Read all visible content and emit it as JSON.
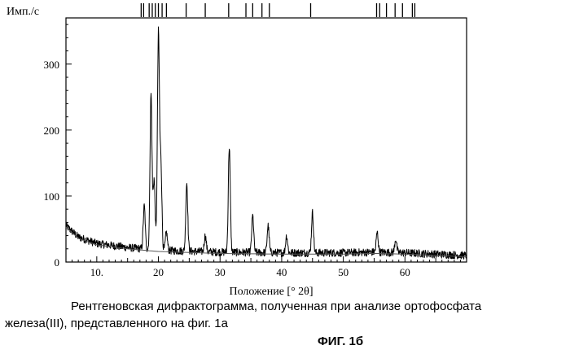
{
  "chart_data": {
    "type": "line",
    "title": "",
    "ylabel": "Имп./с",
    "xlabel": "Положение [° 2θ]",
    "xlim": [
      5,
      70
    ],
    "ylim": [
      0,
      370
    ],
    "x_ticks": [
      10,
      20,
      30,
      40,
      50,
      60
    ],
    "y_ticks": [
      0,
      100,
      200,
      300
    ],
    "grid": false,
    "legend": "none",
    "line_color": "#000000",
    "baseline": [
      [
        5,
        55
      ],
      [
        7,
        38
      ],
      [
        10,
        28
      ],
      [
        15,
        22
      ],
      [
        20,
        18
      ],
      [
        30,
        15
      ],
      [
        40,
        14
      ],
      [
        50,
        14
      ],
      [
        55,
        15
      ],
      [
        60,
        14
      ],
      [
        70,
        10
      ]
    ],
    "peaks": [
      {
        "x": 17.7,
        "y": 85
      },
      {
        "x": 18.8,
        "y": 255
      },
      {
        "x": 19.3,
        "y": 125
      },
      {
        "x": 20.0,
        "y": 345
      },
      {
        "x": 20.4,
        "y": 150
      },
      {
        "x": 21.3,
        "y": 45
      },
      {
        "x": 24.6,
        "y": 120
      },
      {
        "x": 27.6,
        "y": 40
      },
      {
        "x": 31.5,
        "y": 175
      },
      {
        "x": 35.3,
        "y": 70
      },
      {
        "x": 37.8,
        "y": 55
      },
      {
        "x": 40.8,
        "y": 40
      },
      {
        "x": 45.0,
        "y": 75
      },
      {
        "x": 55.5,
        "y": 45
      },
      {
        "x": 58.5,
        "y": 35
      }
    ],
    "reference_markers": [
      17.2,
      17.6,
      18.5,
      19.0,
      19.5,
      20.0,
      20.6,
      21.3,
      24.5,
      27.6,
      31.4,
      34.2,
      35.3,
      36.8,
      38.0,
      44.7,
      55.4,
      55.9,
      57.0,
      58.4,
      59.6,
      61.2,
      61.6
    ]
  },
  "caption": {
    "line1": "Рентгеновская дифрактограмма, полученная при анализе ортофосфата",
    "line2": "железа(III), представленного на фиг. 1а"
  },
  "figure_label": "ФИГ. 1б"
}
